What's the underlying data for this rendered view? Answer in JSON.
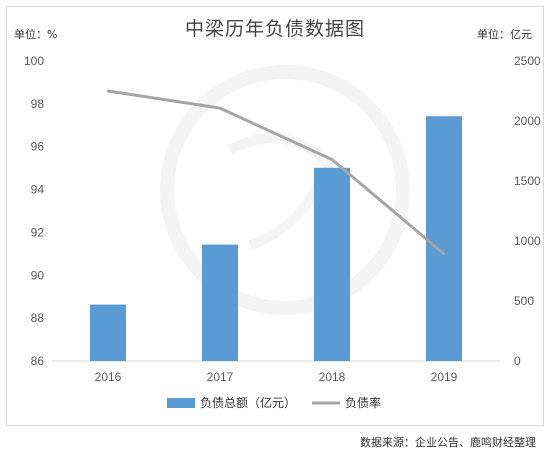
{
  "chart": {
    "title": "中梁历年负债数据图",
    "unit_left": "单位：%",
    "unit_right": "单位：亿元",
    "source": "数据来源：企业公告、鹿鸣财经整理"
  },
  "chart_data": {
    "type": "bar+line",
    "categories": [
      "2016",
      "2017",
      "2018",
      "2019"
    ],
    "series": [
      {
        "name": "负债总额（亿元）",
        "type": "bar",
        "axis": "right",
        "color": "#5b9bd5",
        "values": [
          470,
          970,
          1610,
          2040
        ]
      },
      {
        "name": "负债率",
        "type": "line",
        "axis": "left",
        "color": "#a5a5a5",
        "values": [
          98.6,
          97.8,
          95.4,
          91.0
        ]
      }
    ],
    "y_left": {
      "min": 86,
      "max": 100,
      "ticks": [
        86,
        88,
        90,
        92,
        94,
        96,
        98,
        100
      ]
    },
    "y_right": {
      "min": 0,
      "max": 2500,
      "ticks": [
        0,
        500,
        1000,
        1500,
        2000,
        2500
      ]
    },
    "legend_position": "bottom",
    "grid": false
  }
}
